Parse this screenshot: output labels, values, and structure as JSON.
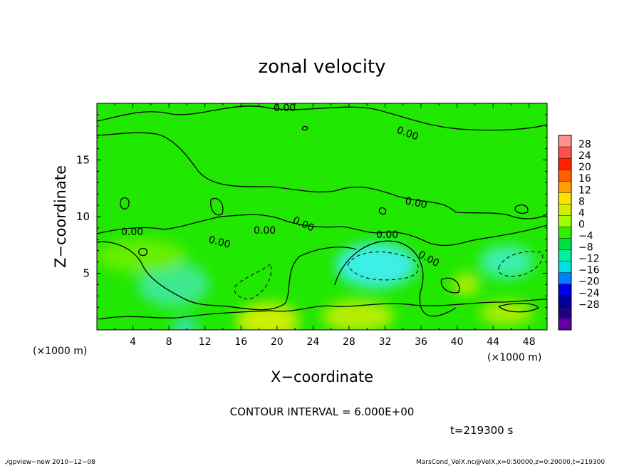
{
  "chart_data": {
    "type": "heatmap",
    "title": "zonal velocity",
    "xlabel": "X−coordinate",
    "ylabel": "Z−coordinate",
    "x_unit_left": "(×1000 m)",
    "x_unit_right": "(×1000 m)",
    "xlim": [
      0,
      50
    ],
    "ylim": [
      0,
      20
    ],
    "xticks": [
      4,
      8,
      12,
      16,
      20,
      24,
      28,
      32,
      36,
      40,
      44,
      48
    ],
    "yticks": [
      5,
      10,
      15
    ],
    "contour_label": "0.00",
    "colorbar_labels": [
      "28",
      "24",
      "20",
      "16",
      "12",
      "8",
      "4",
      "0",
      "−4",
      "−8",
      "−12",
      "−16",
      "−20",
      "−24",
      "−28"
    ],
    "colorbar_colors": [
      "#ff9090",
      "#ff5050",
      "#ff2000",
      "#ff6000",
      "#ffa000",
      "#ffe000",
      "#d0f000",
      "#a0ff00",
      "#30ef00",
      "#00e040",
      "#00f0a0",
      "#00e0e0",
      "#0080ff",
      "#0000e0",
      "#0000a0",
      "#200080",
      "#6000a0"
    ],
    "blobs": [
      {
        "x": 31,
        "z": 5.7,
        "rx": 4.5,
        "rz": 2.0,
        "color": "#40f0ff",
        "note": "negative"
      },
      {
        "x": 45.5,
        "z": 6.0,
        "rx": 3.0,
        "rz": 1.5,
        "color": "#40f0c0",
        "note": "negative"
      },
      {
        "x": 8.5,
        "z": 4.0,
        "rx": 4.0,
        "rz": 2.0,
        "color": "#40e8a0",
        "note": "negative"
      },
      {
        "x": 9.8,
        "z": 0.3,
        "rx": 1.5,
        "rz": 0.6,
        "color": "#40e0ff",
        "note": "negative"
      },
      {
        "x": 19,
        "z": 0.8,
        "rx": 3.5,
        "rz": 1.6,
        "color": "#e0f000",
        "note": "positive"
      },
      {
        "x": 29,
        "z": 1.2,
        "rx": 4.0,
        "rz": 1.4,
        "color": "#c8f000",
        "note": "positive"
      },
      {
        "x": 41,
        "z": 4.0,
        "rx": 1.5,
        "rz": 1.0,
        "color": "#c0f000",
        "note": "positive"
      },
      {
        "x": 45.5,
        "z": 1.5,
        "rx": 3.0,
        "rz": 1.1,
        "color": "#b8f000",
        "note": "positive"
      },
      {
        "x": 5,
        "z": 6.5,
        "rx": 5.0,
        "rz": 1.5,
        "color": "#70f000",
        "note": "positive"
      }
    ]
  },
  "annotations": {
    "contour_interval": "CONTOUR INTERVAL = 6.000E+00",
    "time": "t=219300 s",
    "footer_left": "./gpview−new  2010−12−08",
    "footer_right": "MarsCond_VelX.nc@VelX,x=0:50000,z=0:20000,t=219300"
  }
}
